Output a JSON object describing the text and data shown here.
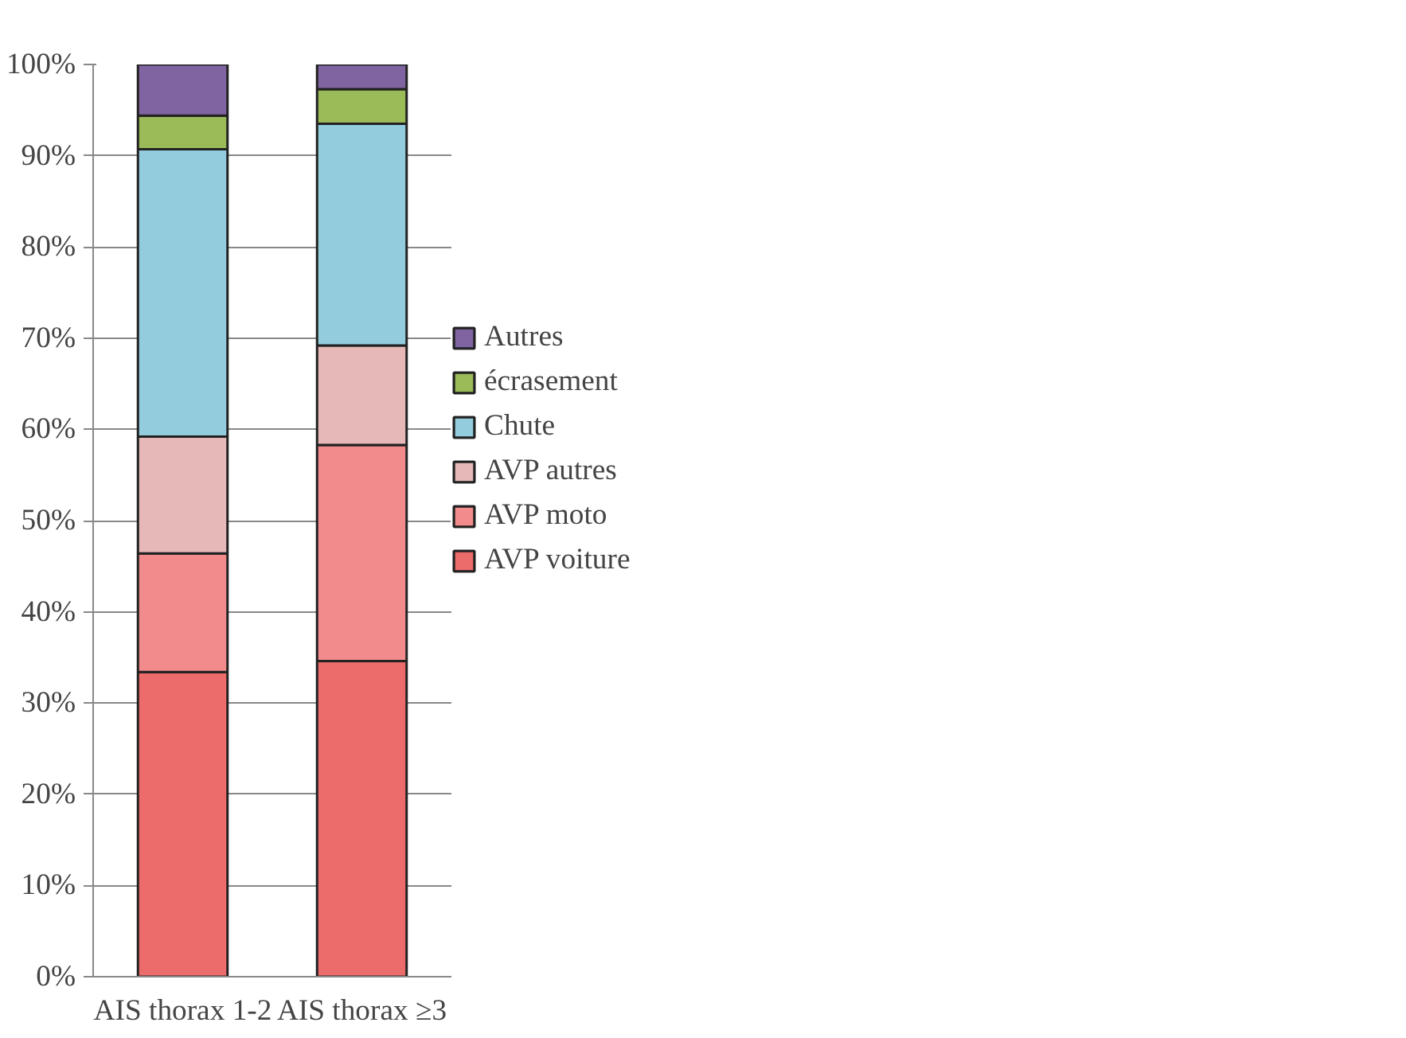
{
  "chart_data": {
    "type": "bar",
    "stacked": true,
    "categories": [
      "AIS thorax 1-2",
      "AIS thorax ≥3"
    ],
    "series": [
      {
        "name": "AVP voiture",
        "color": "#ec6b6b",
        "values": [
          33.4,
          34.6
        ]
      },
      {
        "name": "AVP moto",
        "color": "#f28b8b",
        "values": [
          13.0,
          23.7
        ]
      },
      {
        "name": "AVP autres",
        "color": "#e6b9b8",
        "values": [
          12.8,
          10.9
        ]
      },
      {
        "name": "Chute",
        "color": "#93cddd",
        "values": [
          31.5,
          24.3
        ]
      },
      {
        "name": "écrasement",
        "color": "#9bbb59",
        "values": [
          3.7,
          3.8
        ]
      },
      {
        "name": "Autres",
        "color": "#8064a2",
        "values": [
          5.6,
          2.7
        ]
      }
    ],
    "ylim": [
      0,
      100
    ],
    "yticks": [
      {
        "value": 0,
        "label": "0%"
      },
      {
        "value": 10,
        "label": "10%"
      },
      {
        "value": 20,
        "label": "20%"
      },
      {
        "value": 30,
        "label": "30%"
      },
      {
        "value": 40,
        "label": "40%"
      },
      {
        "value": 50,
        "label": "50%"
      },
      {
        "value": 60,
        "label": "60%"
      },
      {
        "value": 70,
        "label": "70%"
      },
      {
        "value": 80,
        "label": "80%"
      },
      {
        "value": 90,
        "label": "90%"
      },
      {
        "value": 100,
        "label": "100%"
      }
    ],
    "grid": "y",
    "legend": "right"
  }
}
